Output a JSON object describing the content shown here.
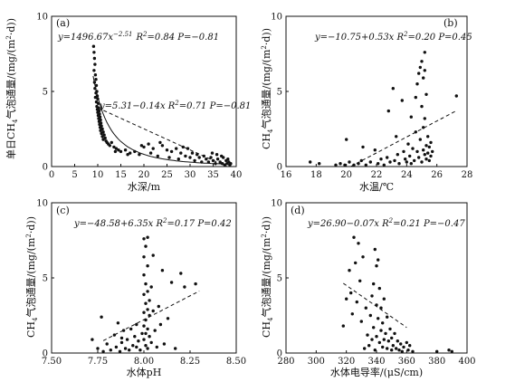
{
  "chart_data": [
    {
      "type": "scatter",
      "panel_label": "(a)",
      "equations": [
        "y=1496.67x^-2.51  R²=0.84  P=-0.81",
        "y=5.31-0.14x  R²=0.71  P=-0.81"
      ],
      "xlabel": "水深/m",
      "ylabel": "单日CH4气泡通量/(mg/(m²·d))",
      "xlim": [
        0,
        40
      ],
      "ylim": [
        0,
        10
      ],
      "xticks": [
        "0",
        "5",
        "10",
        "15",
        "20",
        "25",
        "30",
        "35",
        "40"
      ],
      "yticks": [
        "0",
        "5",
        "10"
      ],
      "points": [
        [
          9.1,
          8.0
        ],
        [
          9.2,
          7.6
        ],
        [
          9.3,
          7.2
        ],
        [
          9.4,
          6.8
        ],
        [
          9.2,
          6.4
        ],
        [
          9.5,
          6.1
        ],
        [
          9.6,
          5.8
        ],
        [
          9.3,
          5.6
        ],
        [
          9.7,
          5.4
        ],
        [
          9.4,
          5.2
        ],
        [
          9.8,
          5.0
        ],
        [
          9.6,
          4.9
        ],
        [
          9.9,
          4.7
        ],
        [
          9.5,
          4.6
        ],
        [
          10.0,
          4.5
        ],
        [
          9.7,
          4.3
        ],
        [
          10.1,
          4.2
        ],
        [
          9.8,
          4.0
        ],
        [
          10.2,
          3.9
        ],
        [
          9.9,
          3.8
        ],
        [
          10.3,
          3.7
        ],
        [
          10.0,
          3.6
        ],
        [
          10.4,
          3.5
        ],
        [
          10.1,
          3.4
        ],
        [
          10.5,
          3.3
        ],
        [
          10.2,
          3.2
        ],
        [
          10.6,
          3.1
        ],
        [
          10.3,
          3.0
        ],
        [
          10.7,
          2.9
        ],
        [
          10.4,
          2.8
        ],
        [
          10.8,
          2.7
        ],
        [
          10.5,
          2.6
        ],
        [
          11.0,
          2.5
        ],
        [
          10.6,
          2.4
        ],
        [
          11.2,
          2.3
        ],
        [
          10.8,
          2.2
        ],
        [
          11.4,
          2.1
        ],
        [
          11.0,
          2.0
        ],
        [
          11.6,
          1.9
        ],
        [
          11.2,
          1.8
        ],
        [
          11.8,
          1.7
        ],
        [
          12.0,
          1.6
        ],
        [
          12.3,
          1.5
        ],
        [
          12.6,
          1.4
        ],
        [
          13.0,
          1.6
        ],
        [
          13.5,
          1.3
        ],
        [
          14.0,
          1.2
        ],
        [
          14.5,
          1.1
        ],
        [
          15.0,
          1.0
        ],
        [
          16.0,
          1.1
        ],
        [
          17.0,
          0.9
        ],
        [
          18.0,
          1.0
        ],
        [
          19.0,
          0.8
        ],
        [
          20.0,
          1.3
        ],
        [
          21.0,
          1.5
        ],
        [
          21.5,
          0.9
        ],
        [
          22.0,
          1.2
        ],
        [
          23.0,
          0.7
        ],
        [
          24.0,
          1.4
        ],
        [
          25.0,
          1.1
        ],
        [
          25.5,
          0.6
        ],
        [
          26.0,
          1.0
        ],
        [
          27.0,
          1.2
        ],
        [
          27.5,
          0.5
        ],
        [
          28.0,
          0.9
        ],
        [
          29.0,
          0.7
        ],
        [
          29.5,
          1.2
        ],
        [
          30.0,
          0.6
        ],
        [
          30.5,
          0.9
        ],
        [
          31.0,
          0.4
        ],
        [
          31.5,
          0.8
        ],
        [
          32.0,
          0.6
        ],
        [
          32.5,
          0.3
        ],
        [
          33.0,
          0.7
        ],
        [
          33.5,
          0.5
        ],
        [
          34.0,
          0.3
        ],
        [
          34.5,
          0.6
        ],
        [
          35.0,
          0.4
        ],
        [
          35.5,
          0.2
        ],
        [
          36.0,
          0.5
        ],
        [
          36.5,
          0.3
        ],
        [
          37.0,
          0.2
        ],
        [
          37.2,
          0.6
        ],
        [
          37.5,
          0.1
        ],
        [
          37.8,
          0.4
        ],
        [
          38.0,
          0.2
        ],
        [
          38.2,
          0.5
        ],
        [
          38.4,
          0.3
        ],
        [
          38.6,
          0.1
        ],
        [
          38.8,
          0.2
        ],
        [
          36.8,
          0.7
        ],
        [
          35.8,
          0.8
        ],
        [
          34.8,
          0.9
        ],
        [
          28.5,
          1.3
        ],
        [
          23.5,
          1.6
        ],
        [
          19.5,
          1.4
        ],
        [
          16.5,
          0.8
        ],
        [
          13.8,
          1.0
        ]
      ],
      "fits": [
        {
          "kind": "power",
          "a": 1496.67,
          "b": -2.51,
          "x_range": [
            9,
            39
          ],
          "style": "solid"
        },
        {
          "kind": "linear",
          "intercept": 5.31,
          "slope": -0.14,
          "x_range": [
            10,
            39
          ],
          "style": "dashed"
        }
      ]
    },
    {
      "type": "scatter",
      "panel_label": "(b)",
      "equations": [
        "y=-10.75+0.53x  R²=0.20  P=0.45"
      ],
      "xlabel": "水温/℃",
      "ylabel": "CH4气泡通量/(mg/(m²·d))",
      "xlim": [
        16,
        28
      ],
      "ylim": [
        0,
        10
      ],
      "xticks": [
        "16",
        "18",
        "20",
        "22",
        "24",
        "26",
        "28"
      ],
      "yticks": [
        "0",
        "5",
        "10"
      ],
      "points": [
        [
          19.3,
          0.1
        ],
        [
          19.6,
          0.2
        ],
        [
          19.9,
          0.1
        ],
        [
          20.2,
          0.3
        ],
        [
          20.5,
          0.1
        ],
        [
          20.8,
          0.2
        ],
        [
          21.0,
          0.4
        ],
        [
          21.3,
          0.1
        ],
        [
          21.6,
          0.3
        ],
        [
          21.9,
          1.1
        ],
        [
          22.1,
          0.2
        ],
        [
          22.3,
          0.5
        ],
        [
          22.5,
          0.1
        ],
        [
          22.7,
          0.6
        ],
        [
          22.8,
          3.7
        ],
        [
          22.9,
          0.3
        ],
        [
          23.1,
          5.2
        ],
        [
          23.2,
          0.4
        ],
        [
          23.4,
          0.8
        ],
        [
          23.5,
          0.2
        ],
        [
          23.7,
          4.4
        ],
        [
          23.8,
          1.0
        ],
        [
          23.9,
          0.5
        ],
        [
          24.0,
          0.3
        ],
        [
          24.1,
          1.5
        ],
        [
          24.2,
          0.7
        ],
        [
          24.3,
          0.2
        ],
        [
          24.4,
          1.2
        ],
        [
          24.5,
          0.4
        ],
        [
          24.6,
          2.3
        ],
        [
          24.6,
          4.6
        ],
        [
          24.7,
          1.0
        ],
        [
          24.7,
          5.5
        ],
        [
          24.8,
          6.2
        ],
        [
          24.8,
          0.6
        ],
        [
          24.9,
          6.6
        ],
        [
          24.9,
          1.8
        ],
        [
          25.0,
          7.0
        ],
        [
          25.0,
          0.3
        ],
        [
          25.0,
          4.0
        ],
        [
          25.1,
          5.9
        ],
        [
          25.1,
          2.6
        ],
        [
          25.1,
          1.1
        ],
        [
          25.2,
          7.6
        ],
        [
          25.2,
          6.4
        ],
        [
          25.2,
          3.2
        ],
        [
          25.2,
          0.8
        ],
        [
          25.3,
          4.8
        ],
        [
          25.3,
          1.4
        ],
        [
          25.3,
          0.5
        ],
        [
          25.4,
          2.0
        ],
        [
          25.4,
          0.9
        ],
        [
          25.5,
          1.3
        ],
        [
          25.5,
          0.4
        ],
        [
          25.6,
          1.6
        ],
        [
          25.6,
          0.7
        ],
        [
          25.7,
          1.0
        ],
        [
          27.3,
          4.7
        ],
        [
          17.6,
          0.3
        ],
        [
          18.2,
          0.2
        ],
        [
          20.0,
          1.8
        ],
        [
          21.1,
          1.3
        ],
        [
          23.3,
          2.0
        ],
        [
          24.3,
          3.3
        ]
      ],
      "fits": [
        {
          "kind": "linear",
          "intercept": -10.75,
          "slope": 0.53,
          "x_range": [
            20.3,
            27.3
          ],
          "style": "dashed"
        }
      ]
    },
    {
      "type": "scatter",
      "panel_label": "(c)",
      "equations": [
        "y=-48.58+6.35x  R²=0.17  P=0.42"
      ],
      "xlabel": "水体pH",
      "ylabel": "CH4气泡通量/(mg/(m²·d))",
      "xlim": [
        7.5,
        8.5
      ],
      "ylim": [
        0,
        10
      ],
      "xticks": [
        "7.50",
        "7.75",
        "8.00",
        "8.25",
        "8.50"
      ],
      "yticks": [
        "0",
        "5",
        "10"
      ],
      "points": [
        [
          7.72,
          0.9
        ],
        [
          7.75,
          0.3
        ],
        [
          7.77,
          2.4
        ],
        [
          7.78,
          0.1
        ],
        [
          7.8,
          0.6
        ],
        [
          7.82,
          0.2
        ],
        [
          7.84,
          1.2
        ],
        [
          7.85,
          0.4
        ],
        [
          7.86,
          2.0
        ],
        [
          7.87,
          0.1
        ],
        [
          7.88,
          0.7
        ],
        [
          7.89,
          1.5
        ],
        [
          7.9,
          0.3
        ],
        [
          7.91,
          0.9
        ],
        [
          7.92,
          0.2
        ],
        [
          7.93,
          1.6
        ],
        [
          7.94,
          0.5
        ],
        [
          7.95,
          1.1
        ],
        [
          7.96,
          0.4
        ],
        [
          7.97,
          0.8
        ],
        [
          7.98,
          0.2
        ],
        [
          7.99,
          1.3
        ],
        [
          8.0,
          7.6
        ],
        [
          8.0,
          6.4
        ],
        [
          8.0,
          5.2
        ],
        [
          8.0,
          3.9
        ],
        [
          8.0,
          2.7
        ],
        [
          8.0,
          1.8
        ],
        [
          8.0,
          0.9
        ],
        [
          8.01,
          7.1
        ],
        [
          8.01,
          4.6
        ],
        [
          8.01,
          3.3
        ],
        [
          8.01,
          2.2
        ],
        [
          8.01,
          1.3
        ],
        [
          8.01,
          0.5
        ],
        [
          8.02,
          7.7
        ],
        [
          8.02,
          5.8
        ],
        [
          8.02,
          4.1
        ],
        [
          8.02,
          2.9
        ],
        [
          8.02,
          1.6
        ],
        [
          8.02,
          0.3
        ],
        [
          8.03,
          3.5
        ],
        [
          8.03,
          2.5
        ],
        [
          8.03,
          1.1
        ],
        [
          8.04,
          4.4
        ],
        [
          8.04,
          0.7
        ],
        [
          8.05,
          2.8
        ],
        [
          8.06,
          1.5
        ],
        [
          8.07,
          0.4
        ],
        [
          8.08,
          3.1
        ],
        [
          8.09,
          1.9
        ],
        [
          8.1,
          5.5
        ],
        [
          8.11,
          0.6
        ],
        [
          8.13,
          2.3
        ],
        [
          8.15,
          4.7
        ],
        [
          8.17,
          0.3
        ],
        [
          8.2,
          5.3
        ],
        [
          8.22,
          4.4
        ],
        [
          8.28,
          4.6
        ],
        [
          8.05,
          6.5
        ],
        [
          7.96,
          1.9
        ],
        [
          7.88,
          1.0
        ]
      ],
      "fits": [
        {
          "kind": "linear",
          "intercept": -48.58,
          "slope": 6.35,
          "x_range": [
            7.78,
            8.3
          ],
          "style": "dashed"
        }
      ]
    },
    {
      "type": "scatter",
      "panel_label": "(d)",
      "equations": [
        "y=26.90-0.07x  R²=0.21  P=-0.47"
      ],
      "xlabel": "水体电导率/(μS/cm)",
      "ylabel": "CH4气泡通量/(mg/(m²·d))",
      "xlim": [
        280,
        400
      ],
      "ylim": [
        0,
        10
      ],
      "xticks": [
        "280",
        "300",
        "320",
        "340",
        "360",
        "380",
        "400"
      ],
      "yticks": [
        "0",
        "5",
        "10"
      ],
      "points": [
        [
          318,
          1.8
        ],
        [
          320,
          3.6
        ],
        [
          322,
          5.5
        ],
        [
          323,
          4.0
        ],
        [
          324,
          2.6
        ],
        [
          325,
          7.7
        ],
        [
          326,
          6.0
        ],
        [
          327,
          3.4
        ],
        [
          328,
          7.3
        ],
        [
          329,
          4.8
        ],
        [
          330,
          2.1
        ],
        [
          331,
          6.4
        ],
        [
          332,
          0.3
        ],
        [
          333,
          3.0
        ],
        [
          334,
          1.2
        ],
        [
          335,
          0.5
        ],
        [
          336,
          2.5
        ],
        [
          337,
          0.9
        ],
        [
          337,
          3.8
        ],
        [
          338,
          1.7
        ],
        [
          338,
          4.6
        ],
        [
          339,
          0.2
        ],
        [
          339,
          6.9
        ],
        [
          340,
          5.8
        ],
        [
          340,
          1.1
        ],
        [
          340,
          3.2
        ],
        [
          341,
          2.3
        ],
        [
          341,
          6.2
        ],
        [
          342,
          0.7
        ],
        [
          342,
          4.3
        ],
        [
          343,
          1.5
        ],
        [
          343,
          3.0
        ],
        [
          344,
          0.4
        ],
        [
          344,
          2.0
        ],
        [
          345,
          0.9
        ],
        [
          345,
          3.6
        ],
        [
          346,
          1.3
        ],
        [
          347,
          0.3
        ],
        [
          347,
          2.4
        ],
        [
          348,
          0.8
        ],
        [
          349,
          1.6
        ],
        [
          350,
          0.2
        ],
        [
          350,
          1.0
        ],
        [
          351,
          0.5
        ],
        [
          352,
          1.3
        ],
        [
          353,
          0.3
        ],
        [
          354,
          0.8
        ],
        [
          355,
          0.2
        ],
        [
          356,
          0.6
        ],
        [
          357,
          0.1
        ],
        [
          358,
          0.4
        ],
        [
          360,
          0.7
        ],
        [
          361,
          0.2
        ],
        [
          362,
          0.5
        ],
        [
          364,
          0.1
        ],
        [
          380,
          0.1
        ],
        [
          388,
          0.2
        ],
        [
          390,
          0.1
        ]
      ],
      "fits": [
        {
          "kind": "linear",
          "intercept": 26.9,
          "slope": -0.07,
          "x_range": [
            318,
            360
          ],
          "style": "dashed"
        }
      ]
    }
  ]
}
